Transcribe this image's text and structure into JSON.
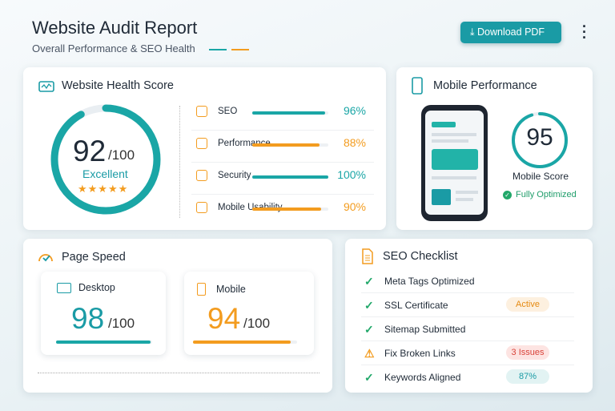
{
  "header": {
    "title": "Website Audit Report",
    "subtitle": "Overall Performance & SEO Health",
    "download": "Download PDF"
  },
  "health": {
    "title": "Website Health Score",
    "score": 92,
    "max": {
      "value": 100,
      "label": "/100"
    },
    "rating": "Excellent",
    "metrics": [
      {
        "name": "SEO",
        "value": 96,
        "label": "96%",
        "color": "#1aa6a6"
      },
      {
        "name": "Performance",
        "value": 88,
        "label": "88%",
        "color": "#f39c1f"
      },
      {
        "name": "Security",
        "value": 100,
        "label": "100%",
        "color": "#1aa6a6"
      },
      {
        "name": "Mobile Usability",
        "value": 90,
        "label": "90%",
        "color": "#f39c1f"
      }
    ]
  },
  "mobile": {
    "title": "Mobile Performance",
    "score": 95,
    "label": "Mobile Score",
    "status": "Fully Optimized"
  },
  "speed": {
    "title": "Page Speed",
    "desktop": {
      "label": "Desktop",
      "score": 98,
      "max": "/100",
      "color": "#1aa6a6"
    },
    "mobile": {
      "label": "Mobile",
      "score": 94,
      "max": "/100",
      "color": "#f39c1f"
    }
  },
  "checklist": {
    "title": "SEO Checklist",
    "items": [
      {
        "text": "Meta Tags Optimized",
        "status": "ok"
      },
      {
        "text": "SSL Certificate",
        "status": "ok",
        "badge": "Active"
      },
      {
        "text": "Sitemap Submitted",
        "status": "ok"
      },
      {
        "text": "Fix Broken Links",
        "status": "warn",
        "badge": "3 Issues"
      },
      {
        "text": "Keywords Aligned",
        "status": "ok",
        "badge": "87%"
      }
    ]
  }
}
